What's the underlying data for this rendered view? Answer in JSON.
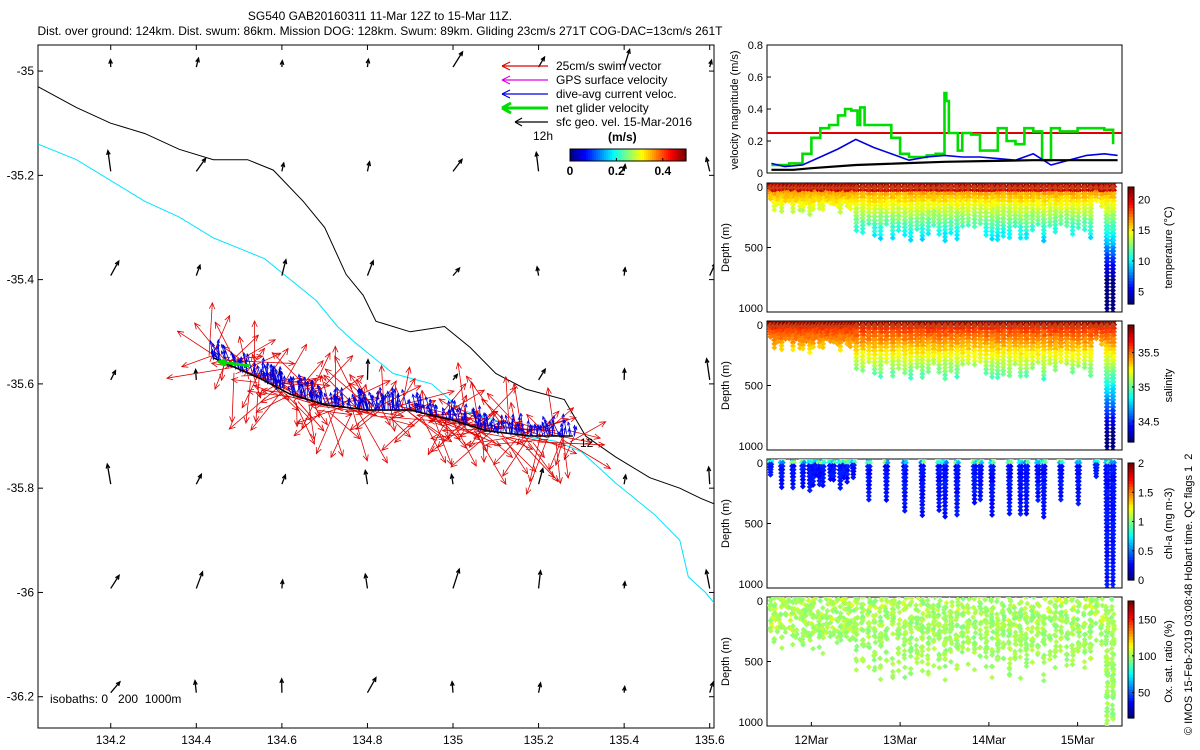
{
  "header": {
    "line1": "SG540 GAB20160311 11-Mar 12Z to 15-Mar 11Z.",
    "line2": "Dist. over ground: 124km. Dist. swum: 86km. Mission DOG: 128km. Swum: 89km. Gliding 23cm/s 271T COG-DAC=13cm/s 261T"
  },
  "colors": {
    "swim": "#e00000",
    "gps": "#e000e0",
    "dac": "#0000e0",
    "net": "#00dd00",
    "sfc": "#000000",
    "isobath_200": "#000000",
    "isobath_1000": "#00e5ff",
    "threshold": "#e00000"
  },
  "chart_data": [
    {
      "id": "map",
      "type": "scatter",
      "title": "",
      "xticks": [
        "134.2",
        "134.4",
        "134.6",
        "134.8",
        "135",
        "135.2",
        "135.4",
        "135.6"
      ],
      "xlim": [
        134.03,
        135.61
      ],
      "yticks": [
        "-35",
        "-35.2",
        "-35.4",
        "-35.6",
        "-35.8",
        "-36",
        "-36.2"
      ],
      "ylim": [
        -36.26,
        -34.95
      ],
      "legend": [
        {
          "label": "25cm/s swim vector",
          "color": "#e00000"
        },
        {
          "label": "GPS surface velocity",
          "color": "#e000e0"
        },
        {
          "label": "dive-avg current veloc.",
          "color": "#0000e0"
        },
        {
          "label": "net glider velocity",
          "color": "#00dd00"
        },
        {
          "label": "sfc geo. vel. 15-Mar-2016",
          "color": "#000000"
        }
      ],
      "legend_position": "top-right",
      "colorbar": {
        "label": "(m/s)",
        "ticks": [
          "0",
          "0.2",
          "0.4"
        ],
        "range": [
          0,
          0.5
        ],
        "note": "12h"
      },
      "isobath_label": "isobaths: 0   200  1000m",
      "end_label": "12",
      "isobath_200": [
        [
          134.03,
          -35.03
        ],
        [
          134.12,
          -35.07
        ],
        [
          134.2,
          -35.1
        ],
        [
          134.28,
          -35.12
        ],
        [
          134.36,
          -35.15
        ],
        [
          134.44,
          -35.17
        ],
        [
          134.52,
          -35.17
        ],
        [
          134.58,
          -35.19
        ],
        [
          134.65,
          -35.25
        ],
        [
          134.7,
          -35.3
        ],
        [
          134.75,
          -35.39
        ],
        [
          134.79,
          -35.43
        ],
        [
          134.82,
          -35.48
        ],
        [
          134.9,
          -35.5
        ],
        [
          134.98,
          -35.49
        ],
        [
          135.04,
          -35.53
        ],
        [
          135.1,
          -35.58
        ],
        [
          135.17,
          -35.61
        ],
        [
          135.26,
          -35.63
        ],
        [
          135.31,
          -35.7
        ],
        [
          135.38,
          -35.74
        ],
        [
          135.46,
          -35.78
        ],
        [
          135.53,
          -35.8
        ],
        [
          135.58,
          -35.82
        ],
        [
          135.61,
          -35.83
        ]
      ],
      "isobath_1000": [
        [
          134.03,
          -35.14
        ],
        [
          134.12,
          -35.17
        ],
        [
          134.2,
          -35.21
        ],
        [
          134.28,
          -35.25
        ],
        [
          134.36,
          -35.28
        ],
        [
          134.44,
          -35.32
        ],
        [
          134.5,
          -35.34
        ],
        [
          134.56,
          -35.36
        ],
        [
          134.62,
          -35.4
        ],
        [
          134.68,
          -35.44
        ],
        [
          134.73,
          -35.49
        ],
        [
          134.77,
          -35.52
        ],
        [
          134.86,
          -35.58
        ],
        [
          134.95,
          -35.6
        ],
        [
          135.02,
          -35.65
        ],
        [
          135.1,
          -35.67
        ],
        [
          135.16,
          -35.7
        ],
        [
          135.24,
          -35.71
        ],
        [
          135.3,
          -35.73
        ],
        [
          135.38,
          -35.79
        ],
        [
          135.47,
          -35.85
        ],
        [
          135.53,
          -35.9
        ],
        [
          135.55,
          -35.97
        ],
        [
          135.59,
          -36.0
        ],
        [
          135.61,
          -36.02
        ]
      ],
      "track": [
        [
          134.44,
          -35.55
        ],
        [
          134.55,
          -35.59
        ],
        [
          134.62,
          -35.62
        ],
        [
          134.7,
          -35.64
        ],
        [
          134.8,
          -35.65
        ],
        [
          134.9,
          -35.65
        ],
        [
          135.0,
          -35.67
        ],
        [
          135.08,
          -35.69
        ],
        [
          135.18,
          -35.7
        ],
        [
          135.28,
          -35.7
        ]
      ],
      "sfc_grid_lons": [
        134.2,
        134.4,
        134.6,
        134.8,
        135.0,
        135.2,
        135.4,
        135.6
      ],
      "sfc_grid_lats": [
        -35.0,
        -35.2,
        -35.4,
        -35.6,
        -35.8,
        -36.0,
        -36.2
      ]
    },
    {
      "id": "velocity",
      "type": "line",
      "ylabel": "velocity magnitude (m/s)",
      "yticks": [
        "0",
        "0.2",
        "0.4",
        "0.6",
        "0.8"
      ],
      "ylim": [
        0,
        0.8
      ],
      "xlim_days": [
        11.5,
        15.5
      ],
      "threshold": 0.25,
      "series": [
        {
          "color": "#00dd00",
          "x": [
            11.55,
            11.65,
            11.75,
            11.9,
            12.0,
            12.1,
            12.2,
            12.3,
            12.38,
            12.45,
            12.52,
            12.55,
            12.6,
            12.7,
            12.8,
            12.9,
            13.0,
            13.1,
            13.2,
            13.3,
            13.4,
            13.5,
            13.52,
            13.55,
            13.65,
            13.7,
            13.8,
            13.9,
            14.0,
            14.1,
            14.2,
            14.3,
            14.4,
            14.5,
            14.6,
            14.7,
            14.8,
            14.9,
            15.0,
            15.1,
            15.2,
            15.3,
            15.4
          ],
          "y": [
            0.05,
            0.05,
            0.06,
            0.12,
            0.22,
            0.28,
            0.3,
            0.36,
            0.4,
            0.39,
            0.3,
            0.41,
            0.3,
            0.3,
            0.3,
            0.22,
            0.12,
            0.1,
            0.1,
            0.11,
            0.12,
            0.5,
            0.45,
            0.25,
            0.14,
            0.25,
            0.24,
            0.14,
            0.14,
            0.28,
            0.2,
            0.18,
            0.28,
            0.26,
            0.08,
            0.28,
            0.26,
            0.26,
            0.28,
            0.28,
            0.28,
            0.27,
            0.18
          ]
        },
        {
          "color": "#0000e0",
          "x": [
            11.55,
            11.7,
            11.9,
            12.1,
            12.3,
            12.5,
            12.7,
            12.9,
            13.1,
            13.3,
            13.5,
            13.7,
            13.9,
            14.1,
            14.3,
            14.5,
            14.7,
            14.9,
            15.1,
            15.3,
            15.45
          ],
          "y": [
            0.06,
            0.04,
            0.05,
            0.1,
            0.15,
            0.21,
            0.16,
            0.12,
            0.08,
            0.1,
            0.11,
            0.1,
            0.1,
            0.09,
            0.08,
            0.12,
            0.05,
            0.08,
            0.11,
            0.12,
            0.11
          ]
        },
        {
          "color": "#000000",
          "x": [
            11.55,
            11.8,
            12.0,
            12.5,
            13.0,
            13.5,
            14.0,
            14.5,
            15.0,
            15.45
          ],
          "y": [
            0.02,
            0.02,
            0.03,
            0.05,
            0.06,
            0.07,
            0.075,
            0.08,
            0.08,
            0.08
          ]
        }
      ]
    },
    {
      "id": "temperature",
      "type": "scatter",
      "ylabel": "Depth (m)",
      "yticks": [
        "0",
        "500",
        "1000"
      ],
      "ylim": [
        0,
        1000
      ],
      "colorbar": {
        "label": "temperature (°C)",
        "ticks": [
          "5",
          "10",
          "15",
          "20"
        ],
        "range": [
          3,
          22
        ]
      }
    },
    {
      "id": "salinity",
      "type": "scatter",
      "ylabel": "Depth (m)",
      "yticks": [
        "0",
        "500",
        "1000"
      ],
      "ylim": [
        0,
        1000
      ],
      "colorbar": {
        "label": "salinity",
        "ticks": [
          "34.5",
          "35",
          "35.5"
        ],
        "range": [
          34.2,
          35.9
        ]
      }
    },
    {
      "id": "chla",
      "type": "scatter",
      "ylabel": "Depth (m)",
      "yticks": [
        "0",
        "500",
        "1000"
      ],
      "ylim": [
        0,
        1000
      ],
      "colorbar": {
        "label": "chl-a (mg m-3)",
        "ticks": [
          "0",
          "0.5",
          "1",
          "1.5",
          "2"
        ],
        "range": [
          0,
          2
        ]
      }
    },
    {
      "id": "oxygen",
      "type": "scatter",
      "ylabel": "Depth (m)",
      "yticks": [
        "0",
        "500",
        "1000"
      ],
      "ylim": [
        0,
        1000
      ],
      "xticks": [
        "12Mar",
        "13Mar",
        "14Mar",
        "15Mar"
      ],
      "xlim_days": [
        11.5,
        15.5
      ],
      "colorbar": {
        "label": "Ox. sat. ratio (%)",
        "ticks": [
          "50",
          "100",
          "150"
        ],
        "range": [
          15,
          175
        ]
      }
    }
  ],
  "side_note": "© IMOS 15-Feb-2019 03:08:48 Hobart time. QC flags 1  2"
}
